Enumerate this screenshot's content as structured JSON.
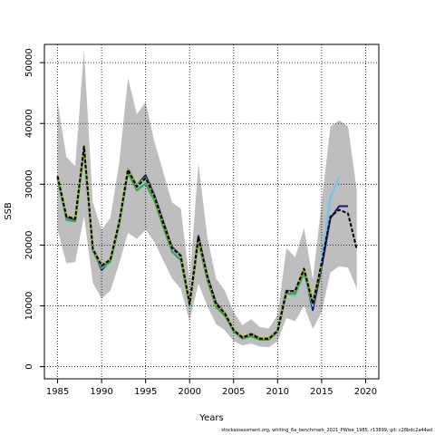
{
  "chart_data": {
    "type": "line",
    "xlabel": "Years",
    "ylabel": "SSB",
    "xlim": [
      1983.5,
      2021.5
    ],
    "ylim": [
      -2000,
      53000
    ],
    "xticks": [
      1985,
      1990,
      1995,
      2000,
      2005,
      2010,
      2015,
      2020
    ],
    "yticks": [
      0,
      10000,
      20000,
      30000,
      40000,
      50000
    ],
    "grid": true,
    "band": {
      "x": [
        1985,
        1986,
        1987,
        1988,
        1989,
        1990,
        1991,
        1992,
        1993,
        1994,
        1995,
        1996,
        1997,
        1998,
        1999,
        2000,
        2001,
        2002,
        2003,
        2004,
        2005,
        2006,
        2007,
        2008,
        2009,
        2010,
        2011,
        2012,
        2013,
        2014,
        2015,
        2016,
        2017,
        2018,
        2019
      ],
      "lower": [
        22500,
        17000,
        17200,
        24800,
        13800,
        11200,
        12500,
        17000,
        22000,
        21000,
        22500,
        20500,
        17500,
        14500,
        12800,
        7500,
        13700,
        10000,
        7000,
        6000,
        4200,
        3500,
        3800,
        3300,
        3200,
        4200,
        8000,
        7500,
        10000,
        6200,
        9000,
        15500,
        16500,
        16300,
        12800
      ],
      "upper": [
        43500,
        34500,
        33000,
        52000,
        27000,
        22500,
        24500,
        33500,
        47500,
        41500,
        43500,
        37000,
        32000,
        27000,
        26000,
        14000,
        33500,
        21500,
        14500,
        12500,
        9000,
        6800,
        7800,
        6500,
        6300,
        8500,
        19500,
        18000,
        22800,
        14300,
        27000,
        39500,
        40500,
        39500,
        29000
      ]
    },
    "series": [
      {
        "color": "#1a1a6e",
        "x": [
          1985,
          1986,
          1987,
          1988,
          1989,
          1990,
          1991,
          1992,
          1993,
          1994,
          1995,
          1996,
          1997,
          1998,
          1999,
          2000,
          2001,
          2002,
          2003,
          2004,
          2005,
          2006,
          2007,
          2008,
          2009,
          2010,
          2011,
          2012,
          2013,
          2014,
          2015,
          2016,
          2017,
          2018
        ],
        "values": [
          31200,
          24600,
          24200,
          35800,
          19300,
          15900,
          17400,
          23600,
          32500,
          29800,
          31500,
          28200,
          23900,
          19700,
          18300,
          10300,
          21500,
          15000,
          10500,
          8800,
          6000,
          4800,
          5400,
          4700,
          4600,
          6000,
          12500,
          12400,
          15900,
          9300,
          16300,
          24400,
          26400,
          26400
        ]
      },
      {
        "color": "#6ec6ea",
        "x": [
          1985,
          1986,
          1987,
          1988,
          1989,
          1990,
          1991,
          1992,
          1993,
          1994,
          1995,
          1996,
          1997,
          1998,
          1999,
          2000,
          2001,
          2002,
          2003,
          2004,
          2005,
          2006,
          2007,
          2008,
          2009,
          2010,
          2011,
          2012,
          2013,
          2014,
          2015,
          2016,
          2017
        ],
        "values": [
          30800,
          24000,
          23800,
          35400,
          19000,
          16200,
          17200,
          23300,
          31800,
          29200,
          30600,
          27600,
          23200,
          19200,
          17600,
          10100,
          20900,
          14600,
          10000,
          8600,
          5900,
          4700,
          5200,
          4500,
          4500,
          5800,
          12100,
          11600,
          15300,
          10000,
          17600,
          27800,
          31200
        ]
      },
      {
        "color": "#3aa04a",
        "x": [
          1985,
          1986,
          1987,
          1988,
          1989,
          1990,
          1991,
          1992,
          1993,
          1994,
          1995,
          1996,
          1997,
          1998,
          1999,
          2000,
          2001,
          2002,
          2003,
          2004,
          2005,
          2006,
          2007,
          2008,
          2009,
          2010,
          2011,
          2012,
          2013,
          2014,
          2015
        ],
        "values": [
          30900,
          24200,
          23900,
          35600,
          19100,
          16300,
          17300,
          23300,
          31900,
          29000,
          30100,
          27300,
          23000,
          18900,
          17500,
          10000,
          20500,
          14300,
          9800,
          8400,
          5800,
          4600,
          5000,
          4400,
          4400,
          5700,
          12000,
          12000,
          15500,
          10400,
          16600
        ]
      },
      {
        "color": "#a8b820",
        "x": [
          1985,
          1986,
          1987,
          1988,
          1989,
          1990,
          1991,
          1992,
          1993,
          1994,
          1995,
          1996,
          1997,
          1998,
          1999,
          2000,
          2001,
          2002,
          2003,
          2004,
          2005,
          2006,
          2007,
          2008,
          2009,
          2010,
          2011,
          2012,
          2013,
          2014,
          2015
        ],
        "values": [
          31400,
          24800,
          24400,
          36300,
          19500,
          16700,
          17700,
          23900,
          32500,
          29800,
          31100,
          27900,
          23600,
          19500,
          18200,
          10400,
          21000,
          14800,
          10200,
          8900,
          6100,
          4900,
          5300,
          4700,
          4700,
          6000,
          12300,
          12500,
          16200,
          11000,
          16900
        ]
      },
      {
        "color": "#000000",
        "dash": "4,2",
        "x": [
          1985,
          1986,
          1987,
          1988,
          1989,
          1990,
          1991,
          1992,
          1993,
          1994,
          1995,
          1996,
          1997,
          1998,
          1999,
          2000,
          2001,
          2002,
          2003,
          2004,
          2005,
          2006,
          2007,
          2008,
          2009,
          2010,
          2011,
          2012,
          2013,
          2014,
          2015,
          2016,
          2017,
          2018,
          2019
        ],
        "values": [
          31300,
          24700,
          24300,
          36200,
          19400,
          16600,
          17600,
          23800,
          32400,
          29600,
          31000,
          28000,
          23600,
          19500,
          18200,
          10300,
          21300,
          14900,
          10300,
          8800,
          6000,
          4800,
          5300,
          4600,
          4600,
          5900,
          12300,
          12500,
          16100,
          10300,
          17000,
          24700,
          25800,
          25200,
          19300
        ]
      }
    ]
  },
  "footer": "stockassessment.org, whiting_6a_benchmark_2021_PWise_1985, r13899, git: c28bdc2a44ad"
}
